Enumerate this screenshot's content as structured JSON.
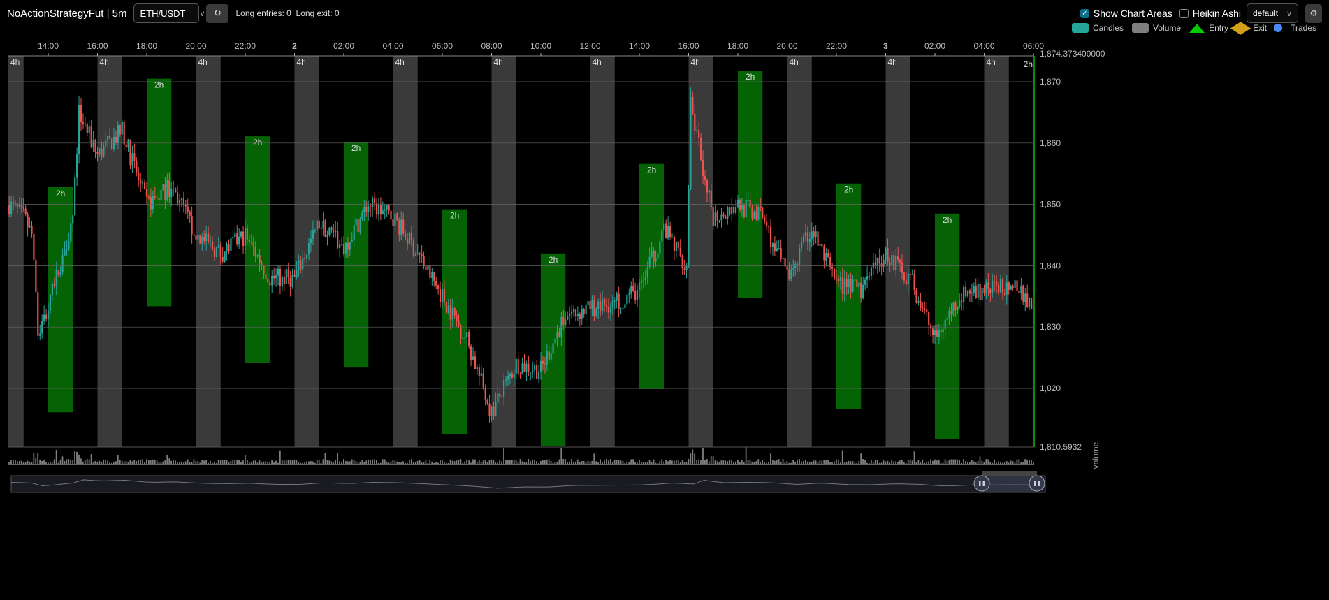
{
  "header": {
    "title": "NoActionStrategyFut | 5m",
    "pair": "ETH/USDT",
    "refresh_icon": "refresh-icon",
    "status": "Long entries: 0  Long exit: 0"
  },
  "controls": {
    "show_chart_areas": "Show Chart Areas",
    "show_chart_areas_checked": true,
    "heikin_ashi": "Heikin Ashi",
    "heikin_ashi_checked": false,
    "theme": "default",
    "settings_icon": "gear-icon"
  },
  "legend": [
    {
      "label": "Candles",
      "color": "#26a69a",
      "shape": "rect"
    },
    {
      "label": "Volume",
      "color": "#7f7f7f",
      "shape": "rect"
    },
    {
      "label": "Entry",
      "color": "#00cc00",
      "shape": "triangle"
    },
    {
      "label": "Exit",
      "color": "#d4a017",
      "shape": "diamond"
    },
    {
      "label": "Trades",
      "color": "#4a8af4",
      "shape": "circle"
    }
  ],
  "chart_data": {
    "type": "candlestick",
    "interval": "5m",
    "x_ticks": [
      "14:00",
      "16:00",
      "18:00",
      "20:00",
      "22:00",
      "2",
      "02:00",
      "04:00",
      "06:00",
      "08:00",
      "10:00",
      "12:00",
      "14:00",
      "16:00",
      "18:00",
      "20:00",
      "22:00",
      "3",
      "02:00",
      "04:00",
      "06:00"
    ],
    "y_ticks": [
      "1,870",
      "1,860",
      "1,850",
      "1,840",
      "1,830",
      "1,820"
    ],
    "y_max_label": "1,874.373400000",
    "y_min_label": "1,810.5932",
    "ylim": [
      1810.5932,
      1874.3734
    ],
    "volume_axis_label": "volume",
    "up_color": "#26a69a",
    "down_color": "#ef5350",
    "price_path": [
      [
        "1 12:25",
        1850
      ],
      [
        "1 13:00",
        1848
      ],
      [
        "1 13:20",
        1845
      ],
      [
        "1 13:35",
        1829
      ],
      [
        "1 14:00",
        1833
      ],
      [
        "1 15:00",
        1848
      ],
      [
        "1 15:15",
        1865
      ],
      [
        "1 16:00",
        1858
      ],
      [
        "1 17:00",
        1862
      ],
      [
        "1 18:00",
        1850
      ],
      [
        "1 19:00",
        1853
      ],
      [
        "1 20:00",
        1845
      ],
      [
        "1 21:00",
        1842
      ],
      [
        "1 22:00",
        1845
      ],
      [
        "1 23:00",
        1838
      ],
      [
        "2 00:00",
        1838
      ],
      [
        "2 01:00",
        1847
      ],
      [
        "2 02:00",
        1843
      ],
      [
        "2 03:00",
        1850
      ],
      [
        "2 04:00",
        1848
      ],
      [
        "2 05:00",
        1842
      ],
      [
        "2 06:00",
        1835
      ],
      [
        "2 07:00",
        1828
      ],
      [
        "2 08:00",
        1816
      ],
      [
        "2 09:00",
        1824
      ],
      [
        "2 10:00",
        1823
      ],
      [
        "2 11:00",
        1832
      ],
      [
        "2 12:00",
        1833
      ],
      [
        "2 13:00",
        1834
      ],
      [
        "2 14:00",
        1836
      ],
      [
        "2 15:00",
        1846
      ],
      [
        "2 15:55",
        1840
      ],
      [
        "2 16:05",
        1866
      ],
      [
        "2 17:00",
        1848
      ],
      [
        "2 18:00",
        1850
      ],
      [
        "2 19:00",
        1848
      ],
      [
        "2 20:00",
        1838
      ],
      [
        "2 21:00",
        1846
      ],
      [
        "2 22:00",
        1837
      ],
      [
        "2 23:00",
        1836
      ],
      [
        "3 00:00",
        1842
      ],
      [
        "3 01:00",
        1838
      ],
      [
        "3 02:00",
        1828
      ],
      [
        "3 03:00",
        1835
      ],
      [
        "3 04:00",
        1836
      ],
      [
        "3 05:00",
        1837
      ],
      [
        "3 06:00",
        1834
      ]
    ],
    "areas": [
      {
        "label": "4h",
        "color": "#3a3a3a",
        "start": "1 12:00",
        "end": "1 13:00"
      },
      {
        "label": "4h",
        "color": "#3a3a3a",
        "start": "1 16:00",
        "end": "1 17:00"
      },
      {
        "label": "4h",
        "color": "#3a3a3a",
        "start": "1 20:00",
        "end": "1 21:00"
      },
      {
        "label": "4h",
        "color": "#3a3a3a",
        "start": "2 00:00",
        "end": "2 01:00"
      },
      {
        "label": "4h",
        "color": "#3a3a3a",
        "start": "2 04:00",
        "end": "2 05:00"
      },
      {
        "label": "4h",
        "color": "#3a3a3a",
        "start": "2 08:00",
        "end": "2 09:00"
      },
      {
        "label": "4h",
        "color": "#3a3a3a",
        "start": "2 12:00",
        "end": "2 13:00"
      },
      {
        "label": "4h",
        "color": "#3a3a3a",
        "start": "2 16:00",
        "end": "2 17:00"
      },
      {
        "label": "4h",
        "color": "#3a3a3a",
        "start": "2 20:00",
        "end": "2 21:00"
      },
      {
        "label": "4h",
        "color": "#3a3a3a",
        "start": "3 00:00",
        "end": "3 01:00"
      },
      {
        "label": "4h",
        "color": "#3a3a3a",
        "start": "3 04:00",
        "end": "3 05:00"
      },
      {
        "label": "2h",
        "color": "#056205",
        "start": "1 14:00",
        "end": "1 15:00",
        "high": 1852.8,
        "low": 1816.1
      },
      {
        "label": "2h",
        "color": "#056205",
        "start": "1 18:00",
        "end": "1 19:00",
        "high": 1870.5,
        "low": 1833.4
      },
      {
        "label": "2h",
        "color": "#056205",
        "start": "1 22:00",
        "end": "1 23:00",
        "high": 1861.1,
        "low": 1824.2
      },
      {
        "label": "2h",
        "color": "#056205",
        "start": "2 02:00",
        "end": "2 03:00",
        "high": 1860.2,
        "low": 1823.4
      },
      {
        "label": "2h",
        "color": "#056205",
        "start": "2 06:00",
        "end": "2 07:00",
        "high": 1849.2,
        "low": 1812.5
      },
      {
        "label": "2h",
        "color": "#056205",
        "start": "2 10:00",
        "end": "2 11:00",
        "high": 1842.0,
        "low": 1810.6
      },
      {
        "label": "2h",
        "color": "#056205",
        "start": "2 14:00",
        "end": "2 15:00",
        "high": 1856.6,
        "low": 1819.9
      },
      {
        "label": "2h",
        "color": "#056205",
        "start": "2 18:00",
        "end": "2 19:00",
        "high": 1871.8,
        "low": 1834.7
      },
      {
        "label": "2h",
        "color": "#056205",
        "start": "2 22:00",
        "end": "2 23:00",
        "high": 1853.4,
        "low": 1816.6
      },
      {
        "label": "2h",
        "color": "#056205",
        "start": "3 02:00",
        "end": "3 03:00",
        "high": 1848.5,
        "low": 1811.8
      },
      {
        "label": "2h",
        "color": "#056205",
        "start": "3 06:00",
        "end": "3 07:00",
        "high": 1874.3734,
        "low": 1810.5932
      }
    ]
  }
}
